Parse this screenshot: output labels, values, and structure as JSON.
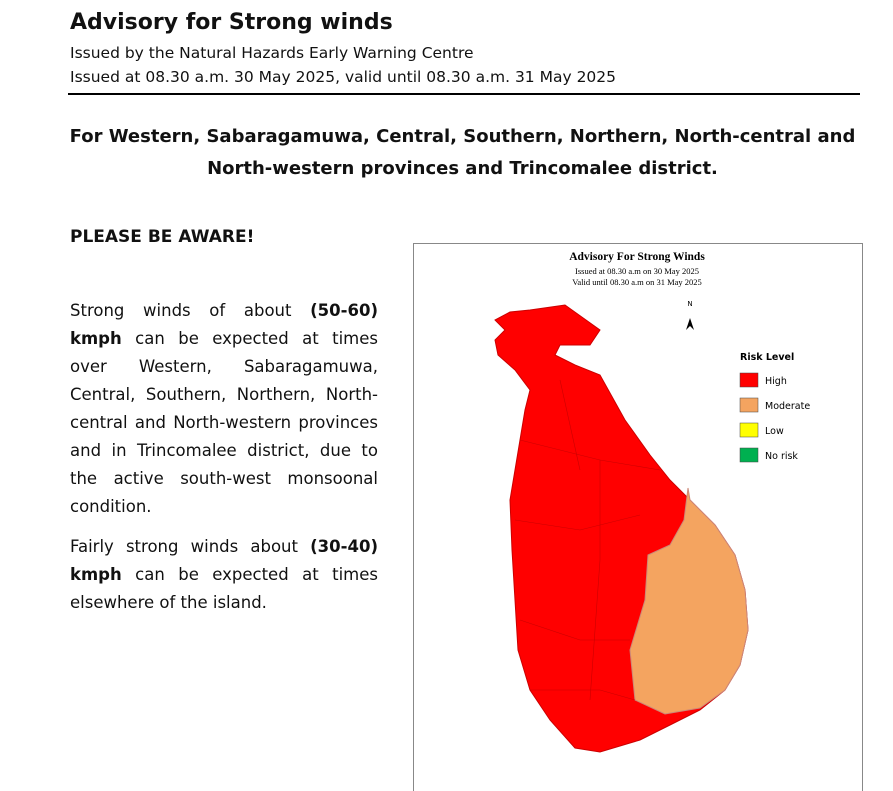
{
  "header": {
    "title": "Advisory for Strong winds",
    "issuer": "Issued by the Natural Hazards Early Warning Centre",
    "issued": "Issued at 08.30 a.m. 30 May 2025, valid until 08.30 a.m. 31 May 2025"
  },
  "heading": {
    "lines": [
      "For Western, Sabaragamuwa, Central, Southern, Northern, North-central and",
      "North-western provinces and Trincomalee district."
    ]
  },
  "body": {
    "aware": "PLEASE BE AWARE!",
    "paragraphs": [
      [
        {
          "text": "Strong winds of about ",
          "bold": false
        },
        {
          "text": "(50-60) kmph",
          "bold": true
        },
        {
          "text": " can be expected at times over Western, Sabaragamuwa, Central, Southern, Northern, North-central and North-western provinces and in Trincomalee district, due to the active south-west monsoonal condition.",
          "bold": false
        }
      ],
      [
        {
          "text": "Fairly strong winds about ",
          "bold": false
        },
        {
          "text": "(30-40)",
          "bold": true
        },
        {
          "text": " ",
          "bold": false
        },
        {
          "text": "kmph",
          "bold": true
        },
        {
          "text": " can be expected at times elsewhere of the island.",
          "bold": false
        }
      ]
    ]
  },
  "map": {
    "title": "Advisory For Strong Winds",
    "issued": "Issued at 08.30 a.m on 30 May 2025",
    "valid": "Valid until 08.30 a.m on 31 May 2025",
    "north": "N",
    "legend": {
      "title": "Risk Level",
      "items": [
        {
          "label": "High",
          "color": "#ff0000"
        },
        {
          "label": "Moderate",
          "color": "#f4a460"
        },
        {
          "label": "Low",
          "color": "#ffff00"
        },
        {
          "label": "No risk",
          "color": "#00b050"
        }
      ]
    }
  }
}
